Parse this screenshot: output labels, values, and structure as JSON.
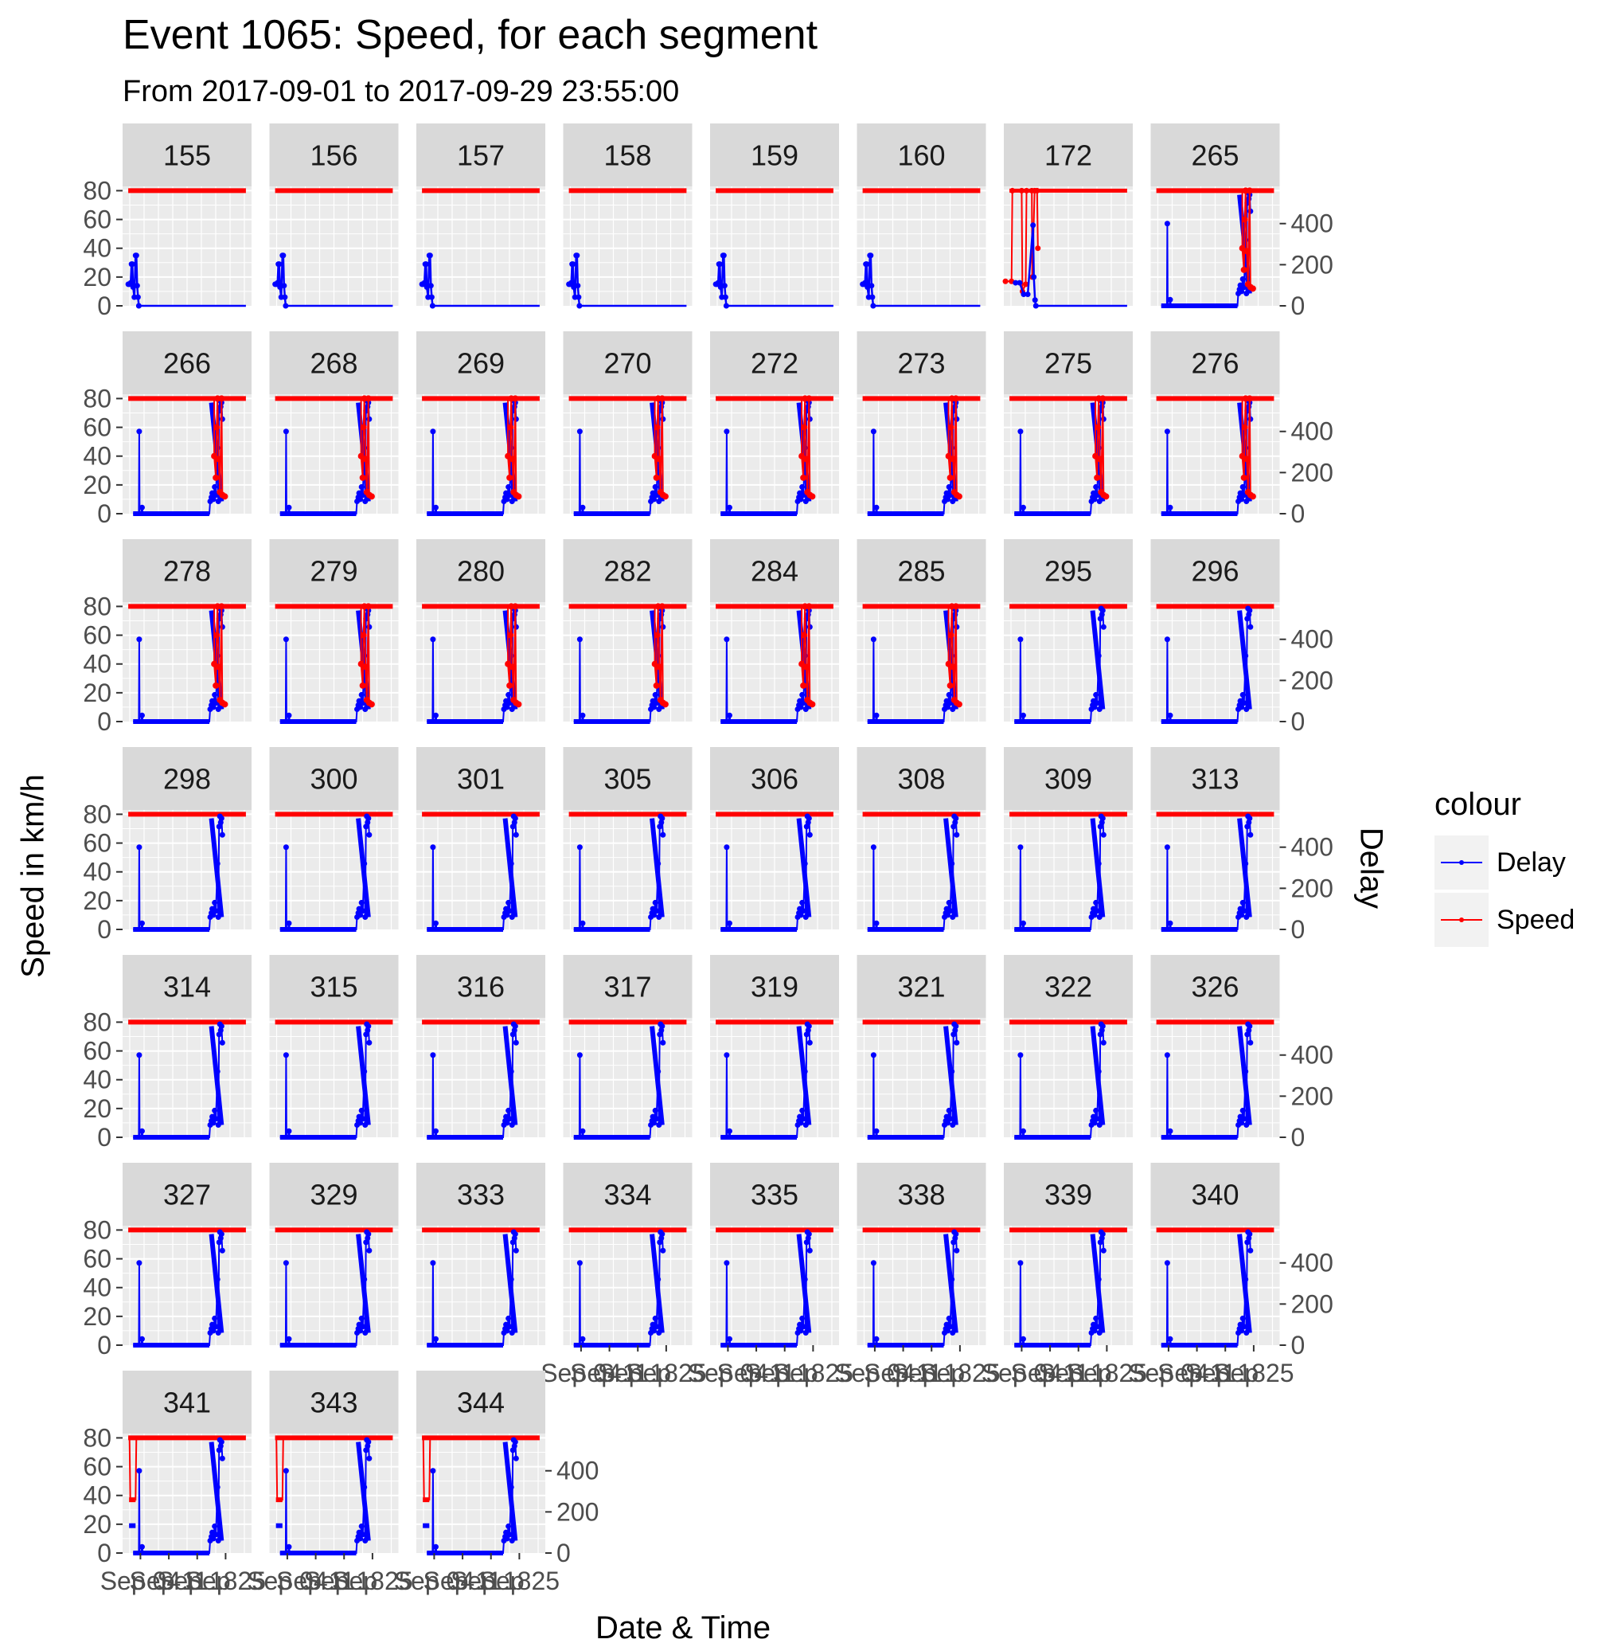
{
  "chart_data": {
    "type": "line",
    "title": "Event 1065: Speed, for each segment",
    "subtitle": "From 2017-09-01 to 2017-09-29 23:55:00",
    "xlabel": "Date & Time",
    "ylabel": "Speed in km/h",
    "y2label": "Delay",
    "x_tick_labels": [
      "Sep 04",
      "Sep 11",
      "Sep 18",
      "Sep 25"
    ],
    "y_ticks": [
      0,
      20,
      40,
      60,
      80
    ],
    "y2_ticks": [
      0,
      200,
      400
    ],
    "ylim": [
      0,
      83
    ],
    "y2lim": [
      0,
      581
    ],
    "legend": {
      "title": "colour",
      "position": "right",
      "entries": [
        {
          "label": "Delay",
          "color": "#0000ff"
        },
        {
          "label": "Speed",
          "color": "#ff0000"
        }
      ]
    },
    "facets": [
      "155",
      "156",
      "157",
      "158",
      "159",
      "160",
      "172",
      "265",
      "266",
      "268",
      "269",
      "270",
      "272",
      "273",
      "275",
      "276",
      "278",
      "279",
      "280",
      "282",
      "284",
      "285",
      "295",
      "296",
      "298",
      "300",
      "301",
      "305",
      "306",
      "308",
      "309",
      "313",
      "314",
      "315",
      "316",
      "317",
      "319",
      "321",
      "322",
      "326",
      "327",
      "329",
      "333",
      "334",
      "335",
      "338",
      "339",
      "340",
      "341",
      "343",
      "344"
    ],
    "series_profiles": {
      "speed_flat": "Speed 80 km/h throughout 2017-09-01 to 2017-09-29",
      "delay_early": "Delay (left axis) 15–35 around Sep 01–03, then 0",
      "delay_late": "Delay (right axis) ~400 spike near Sep 04, then 0 until ~Sep 20, rising to ~550 around Sep 22–24",
      "speed_drop_late": "Speed 80 with drops to ~10–40 km/h near Sep 22–25",
      "speed_drop_early": "Speed 80 with drop to ~37 km/h around Sep 01–02"
    },
    "grid": true,
    "background": "#ebebeb"
  }
}
